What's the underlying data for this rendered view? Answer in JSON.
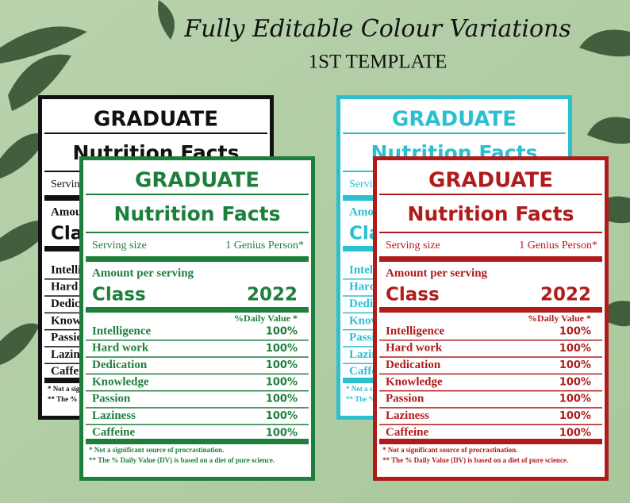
{
  "header": {
    "title": "Fully Editable Colour Variations",
    "subtitle": "1ST TEMPLATE"
  },
  "label": {
    "title": "GRADUATE",
    "heading": "Nutrition Facts",
    "serving_label": "Serving size",
    "serving_value": "1 Genius Person*",
    "amount": "Amount per serving",
    "class_label": "Class",
    "class_year": "2022",
    "dv_header": "%Daily Value *",
    "rows": [
      [
        "Intelligence",
        "100%"
      ],
      [
        "Hard work",
        "100%"
      ],
      [
        "Dedication",
        "100%"
      ],
      [
        "Knowledge",
        "100%"
      ],
      [
        "Passion",
        "100%"
      ],
      [
        "Laziness",
        "100%"
      ],
      [
        "Caffeine",
        "100%"
      ]
    ],
    "footnotes": [
      "* Not a significant source of procrastination.",
      "** The % Daily Value (DV) is based on a diet of pure science."
    ]
  }
}
